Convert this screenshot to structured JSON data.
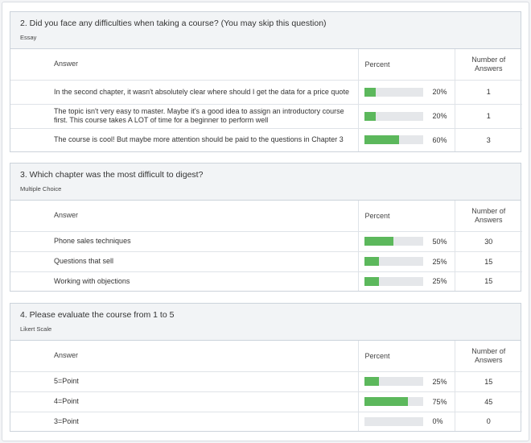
{
  "columns": {
    "answer": "Answer",
    "percent": "Percent",
    "number_l1": "Number of",
    "number_l2": "Answers"
  },
  "questions": [
    {
      "title": "2. Did you face any difficulties when taking a course? (You may skip this question)",
      "type": "Essay",
      "rows": [
        {
          "answer": "In the second chapter, it wasn't absolutely clear where should I get the data for a price quote",
          "percent": "20%",
          "fill": 20,
          "count": "1"
        },
        {
          "answer": "The topic isn't very easy to master. Maybe it's a good idea to assign an introductory course first. This course takes A LOT of time for a beginner to perform well",
          "percent": "20%",
          "fill": 20,
          "count": "1"
        },
        {
          "answer": "The course is cool! But maybe more attention should be paid to the questions in Chapter 3",
          "percent": "60%",
          "fill": 60,
          "count": "3"
        }
      ]
    },
    {
      "title": "3. Which chapter was the most difficult to digest?",
      "type": "Multiple Choice",
      "rows": [
        {
          "answer": "Phone sales techniques",
          "percent": "50%",
          "fill": 50,
          "count": "30"
        },
        {
          "answer": "Questions that sell",
          "percent": "25%",
          "fill": 25,
          "count": "15"
        },
        {
          "answer": "Working with objections",
          "percent": "25%",
          "fill": 25,
          "count": "15"
        }
      ]
    },
    {
      "title": "4. Please evaluate the course from 1 to 5",
      "type": "Likert Scale",
      "rows": [
        {
          "answer": "5=Point",
          "percent": "25%",
          "fill": 25,
          "count": "15"
        },
        {
          "answer": "4=Point",
          "percent": "75%",
          "fill": 75,
          "count": "45"
        },
        {
          "answer": "3=Point",
          "percent": "0%",
          "fill": 0,
          "count": "0"
        }
      ]
    }
  ],
  "colors": {
    "bar_fill": "#5cb85c",
    "bar_track": "#e5e7ea",
    "header_bg": "#f2f4f6"
  }
}
